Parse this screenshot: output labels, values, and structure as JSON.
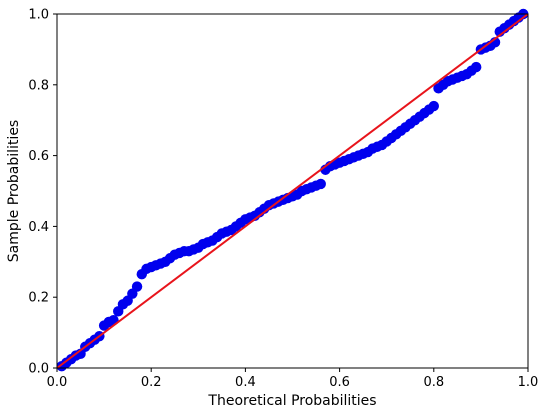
{
  "chart_data": {
    "type": "scatter",
    "title": "",
    "xlabel": "Theoretical Probabilities",
    "ylabel": "Sample Probabilities",
    "xlim": [
      0.0,
      1.0
    ],
    "ylim": [
      0.0,
      1.0
    ],
    "xticks": [
      "0.0",
      "0.2",
      "0.4",
      "0.6",
      "0.8",
      "1.0"
    ],
    "yticks": [
      "0.0",
      "0.2",
      "0.4",
      "0.6",
      "0.8",
      "1.0"
    ],
    "grid": false,
    "legend": "none",
    "reference_line": {
      "x": [
        0,
        1
      ],
      "y": [
        0,
        1
      ],
      "color": "#e8141b"
    },
    "marker_color": "#0000ee",
    "series": [
      {
        "x": [
          0.01,
          0.02,
          0.03,
          0.04,
          0.05,
          0.06,
          0.07,
          0.08,
          0.09,
          0.1,
          0.11,
          0.12,
          0.13,
          0.14,
          0.15,
          0.16,
          0.17,
          0.18,
          0.19,
          0.2,
          0.21,
          0.22,
          0.23,
          0.24,
          0.25,
          0.26,
          0.27,
          0.28,
          0.29,
          0.3,
          0.31,
          0.32,
          0.33,
          0.34,
          0.35,
          0.36,
          0.37,
          0.38,
          0.39,
          0.4,
          0.41,
          0.42,
          0.43,
          0.44,
          0.45,
          0.46,
          0.47,
          0.48,
          0.49,
          0.5,
          0.51,
          0.52,
          0.53,
          0.54,
          0.55,
          0.56,
          0.57,
          0.58,
          0.59,
          0.6,
          0.61,
          0.62,
          0.63,
          0.64,
          0.65,
          0.66,
          0.67,
          0.68,
          0.69,
          0.7,
          0.71,
          0.72,
          0.73,
          0.74,
          0.75,
          0.76,
          0.77,
          0.78,
          0.79,
          0.8,
          0.81,
          0.82,
          0.83,
          0.84,
          0.85,
          0.86,
          0.87,
          0.88,
          0.89,
          0.9,
          0.91,
          0.92,
          0.93,
          0.94,
          0.95,
          0.96,
          0.97,
          0.98,
          0.99
        ],
        "y": [
          0.005,
          0.015,
          0.025,
          0.035,
          0.04,
          0.06,
          0.07,
          0.08,
          0.09,
          0.12,
          0.13,
          0.135,
          0.16,
          0.18,
          0.19,
          0.21,
          0.23,
          0.265,
          0.28,
          0.285,
          0.29,
          0.295,
          0.3,
          0.31,
          0.32,
          0.325,
          0.33,
          0.33,
          0.335,
          0.34,
          0.35,
          0.355,
          0.36,
          0.37,
          0.38,
          0.385,
          0.39,
          0.4,
          0.41,
          0.42,
          0.425,
          0.43,
          0.44,
          0.45,
          0.46,
          0.465,
          0.47,
          0.475,
          0.48,
          0.485,
          0.49,
          0.5,
          0.505,
          0.51,
          0.515,
          0.52,
          0.56,
          0.57,
          0.575,
          0.58,
          0.585,
          0.59,
          0.595,
          0.6,
          0.605,
          0.61,
          0.62,
          0.625,
          0.63,
          0.64,
          0.65,
          0.66,
          0.67,
          0.68,
          0.69,
          0.7,
          0.71,
          0.72,
          0.73,
          0.74,
          0.79,
          0.8,
          0.81,
          0.815,
          0.82,
          0.825,
          0.83,
          0.84,
          0.85,
          0.9,
          0.905,
          0.91,
          0.92,
          0.95,
          0.96,
          0.97,
          0.98,
          0.99,
          1.0
        ]
      }
    ]
  }
}
